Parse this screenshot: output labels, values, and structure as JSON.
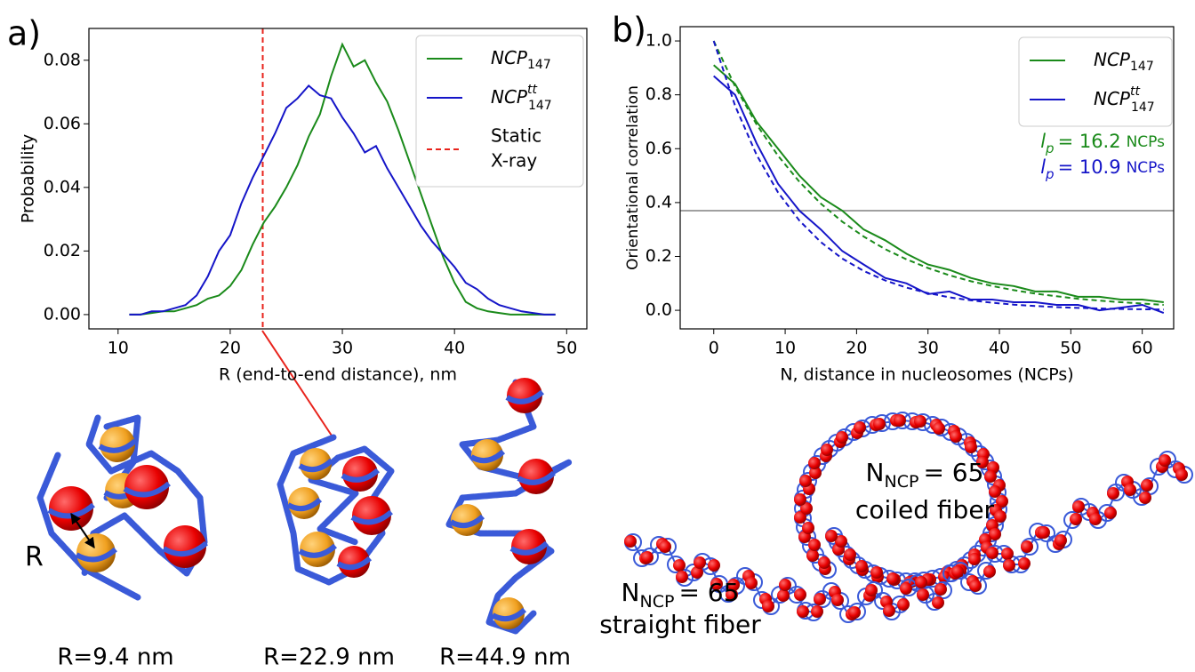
{
  "chart_data": [
    {
      "type": "line",
      "xlabel": "R (end-to-end distance), nm",
      "ylabel": "Probability",
      "xlim": [
        7.4,
        51.8
      ],
      "ylim": [
        -0.0045,
        0.09
      ],
      "xticks": [
        10,
        20,
        30,
        40,
        50
      ],
      "yticks": [
        {
          "value": 0,
          "label": "0.00"
        },
        {
          "value": 0.02,
          "label": "0.02"
        },
        {
          "value": 0.04,
          "label": "0.04"
        },
        {
          "value": 0.06,
          "label": "0.06"
        },
        {
          "value": 0.08,
          "label": "0.08"
        }
      ],
      "legend": "upper right",
      "x": [
        11,
        12,
        13,
        14,
        15,
        16,
        17,
        18,
        19,
        20,
        21,
        22,
        23,
        24,
        25,
        26,
        27,
        28,
        29,
        30,
        31,
        32,
        33,
        34,
        35,
        36,
        37,
        38,
        39,
        40,
        41,
        42,
        43,
        44,
        45,
        46,
        47,
        48,
        49
      ],
      "series": [
        {
          "name": "NCP",
          "subscript": "147",
          "color": "#1a8a1a",
          "style": "solid",
          "values": [
            0,
            0,
            0.0005,
            0.001,
            0.001,
            0.002,
            0.003,
            0.005,
            0.006,
            0.009,
            0.014,
            0.022,
            0.029,
            0.034,
            0.04,
            0.047,
            0.056,
            0.063,
            0.075,
            0.085,
            0.078,
            0.08,
            0.073,
            0.067,
            0.058,
            0.048,
            0.038,
            0.028,
            0.018,
            0.01,
            0.004,
            0.002,
            0.001,
            0.0005,
            0,
            0,
            0,
            0,
            0
          ]
        },
        {
          "name": "NCP",
          "subscript": "147",
          "superscript": "tt",
          "color": "#1515c8",
          "style": "solid",
          "values": [
            0,
            0,
            0.001,
            0.001,
            0.002,
            0.003,
            0.006,
            0.012,
            0.02,
            0.025,
            0.035,
            0.043,
            0.05,
            0.057,
            0.065,
            0.068,
            0.072,
            0.069,
            0.068,
            0.062,
            0.057,
            0.051,
            0.053,
            0.046,
            0.04,
            0.034,
            0.028,
            0.023,
            0.019,
            0.015,
            0.01,
            0.008,
            0.005,
            0.003,
            0.002,
            0.001,
            0.0005,
            0,
            0
          ]
        }
      ],
      "reference_lines": [
        {
          "x": 22.9,
          "color": "#e8231c",
          "style": "dashed",
          "label_lines": [
            "Static",
            "X-ray"
          ]
        }
      ]
    },
    {
      "type": "line",
      "xlabel": "N, distance in nucleosomes (NCPs)",
      "ylabel": "Orientational correlation",
      "xlim": [
        -4.7,
        64.4
      ],
      "ylim": [
        -0.069,
        1.053
      ],
      "xticks": [
        0,
        10,
        20,
        30,
        40,
        50,
        60
      ],
      "yticks": [
        {
          "value": 0,
          "label": "0.0"
        },
        {
          "value": 0.2,
          "label": "0.2"
        },
        {
          "value": 0.4,
          "label": "0.4"
        },
        {
          "value": 0.6,
          "label": "0.6"
        },
        {
          "value": 0.8,
          "label": "0.8"
        },
        {
          "value": 1,
          "label": "1.0"
        }
      ],
      "legend": "upper right",
      "x": [
        0,
        3,
        6,
        9,
        12,
        15,
        18,
        21,
        24,
        27,
        30,
        33,
        36,
        39,
        42,
        45,
        48,
        51,
        54,
        57,
        60,
        63
      ],
      "series": [
        {
          "name": "NCP",
          "subscript": "147",
          "color": "#1a8a1a",
          "style": "solid",
          "values": [
            0.91,
            0.84,
            0.7,
            0.6,
            0.5,
            0.42,
            0.37,
            0.3,
            0.26,
            0.21,
            0.17,
            0.15,
            0.12,
            0.1,
            0.09,
            0.07,
            0.07,
            0.05,
            0.05,
            0.04,
            0.04,
            0.03
          ]
        },
        {
          "name": "NCP",
          "subscript": "147",
          "superscript": "tt",
          "color": "#1515c8",
          "style": "solid",
          "values": [
            0.87,
            0.8,
            0.62,
            0.47,
            0.37,
            0.3,
            0.22,
            0.17,
            0.12,
            0.1,
            0.06,
            0.07,
            0.04,
            0.04,
            0.03,
            0.03,
            0.02,
            0.02,
            0,
            0.01,
            0.02,
            -0.01
          ]
        },
        {
          "color": "#1a8a1a",
          "style": "dashed",
          "values": [
            1,
            0.831,
            0.69,
            0.574,
            0.477,
            0.396,
            0.329,
            0.274,
            0.227,
            0.189,
            0.157,
            0.13,
            0.108,
            0.09,
            0.075,
            0.062,
            0.052,
            0.043,
            0.036,
            0.03,
            0.025,
            0.02
          ]
        },
        {
          "color": "#1515c8",
          "style": "dashed",
          "values": [
            1,
            0.759,
            0.577,
            0.438,
            0.333,
            0.253,
            0.192,
            0.146,
            0.111,
            0.084,
            0.064,
            0.048,
            0.037,
            0.028,
            0.021,
            0.016,
            0.012,
            0.009,
            0.007,
            0.005,
            0.004,
            0.003
          ]
        }
      ],
      "reference_lines": [
        {
          "y": 0.37,
          "color": "#a0a0a0",
          "style": "solid"
        }
      ],
      "annotations": [
        {
          "symbol": "l",
          "subscript": "p",
          "text": "= 16.2",
          "unit": "NCPs",
          "color": "#1a8a1a"
        },
        {
          "symbol": "l",
          "subscript": "p",
          "text": "= 10.9",
          "unit": "NCPs",
          "color": "#1515c8"
        }
      ]
    }
  ],
  "figure": {
    "panel_labels": [
      "a)",
      "b)"
    ],
    "captions": [
      "R=9.4 nm",
      "R=22.9 nm",
      "R=44.9 nm"
    ],
    "distance_label": "R",
    "fibers": [
      {
        "symbol": "N",
        "subscript": "NCP",
        "count": "= 65",
        "label": "coiled fiber"
      },
      {
        "symbol": "N",
        "subscript": "NCP",
        "count": "= 65",
        "label": "straight fiber"
      }
    ]
  }
}
